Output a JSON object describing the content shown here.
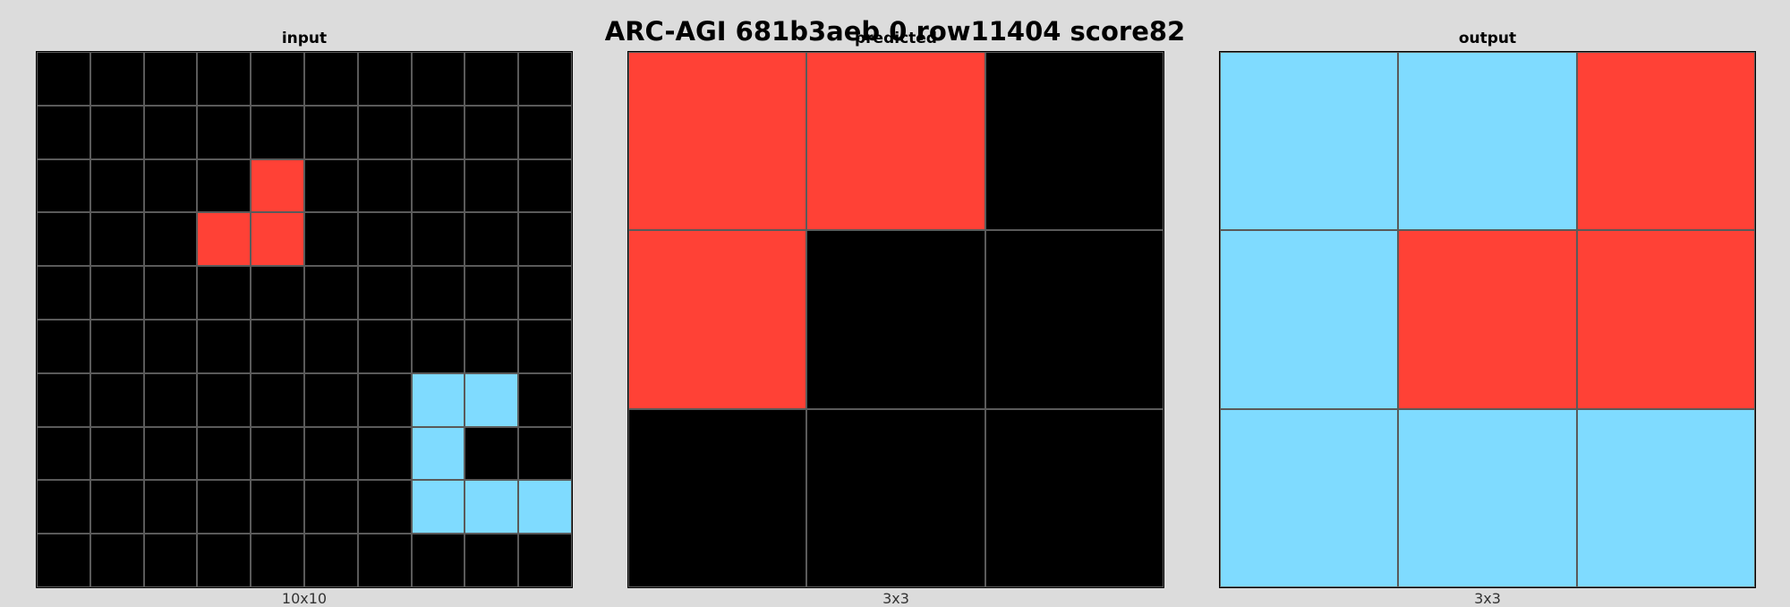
{
  "title": "ARC-AGI 681b3aeb 0 row11404 score82",
  "palette": {
    "0": "#000000",
    "2": "#ff4136",
    "8": "#7fdbff"
  },
  "panels": [
    {
      "title": "input",
      "size_label": "10x10",
      "grid": [
        [
          0,
          0,
          0,
          0,
          0,
          0,
          0,
          0,
          0,
          0
        ],
        [
          0,
          0,
          0,
          0,
          0,
          0,
          0,
          0,
          0,
          0
        ],
        [
          0,
          0,
          0,
          0,
          2,
          0,
          0,
          0,
          0,
          0
        ],
        [
          0,
          0,
          0,
          2,
          2,
          0,
          0,
          0,
          0,
          0
        ],
        [
          0,
          0,
          0,
          0,
          0,
          0,
          0,
          0,
          0,
          0
        ],
        [
          0,
          0,
          0,
          0,
          0,
          0,
          0,
          0,
          0,
          0
        ],
        [
          0,
          0,
          0,
          0,
          0,
          0,
          0,
          8,
          8,
          0
        ],
        [
          0,
          0,
          0,
          0,
          0,
          0,
          0,
          8,
          0,
          0
        ],
        [
          0,
          0,
          0,
          0,
          0,
          0,
          0,
          8,
          8,
          8
        ],
        [
          0,
          0,
          0,
          0,
          0,
          0,
          0,
          0,
          0,
          0
        ]
      ]
    },
    {
      "title": "predicted",
      "size_label": "3x3",
      "grid": [
        [
          2,
          2,
          0
        ],
        [
          2,
          0,
          0
        ],
        [
          0,
          0,
          0
        ]
      ]
    },
    {
      "title": "output",
      "size_label": "3x3",
      "grid": [
        [
          8,
          8,
          2
        ],
        [
          8,
          2,
          2
        ],
        [
          8,
          8,
          8
        ]
      ]
    }
  ]
}
